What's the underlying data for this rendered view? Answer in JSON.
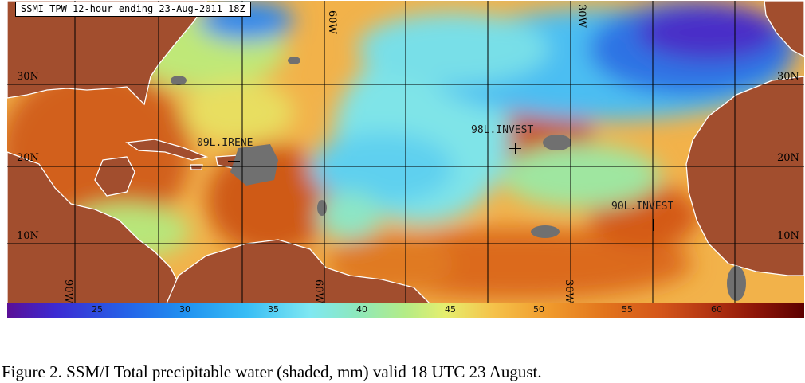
{
  "map": {
    "title": "SSMI TPW 12-hour ending 23-Aug-2011 18Z",
    "lat_labels_left": [
      "30N",
      "20N",
      "10N"
    ],
    "lat_labels_right": [
      "30N",
      "20N",
      "10N"
    ],
    "lon_labels_top": [
      "60W",
      "30W"
    ],
    "lon_labels_bottom": [
      "90W",
      "60W",
      "30W"
    ],
    "storms": [
      {
        "id": "irene",
        "label": "09L.IRENE"
      },
      {
        "id": "inv98",
        "label": "98L.INVEST"
      },
      {
        "id": "inv90",
        "label": "90L.INVEST"
      }
    ],
    "colors": {
      "land": "#a24e2e",
      "ocean_dry": "#3aa8f0",
      "ocean_wet": "#d9661e",
      "missing": "#707070",
      "coast": "#ffffff"
    }
  },
  "colorbar": {
    "ticks": [
      "25",
      "30",
      "35",
      "40",
      "45",
      "50",
      "55",
      "60"
    ],
    "unit": "mm"
  },
  "caption": "Figure 2.  SSM/I Total precipitable water (shaded, mm) valid 18 UTC 23 August."
}
